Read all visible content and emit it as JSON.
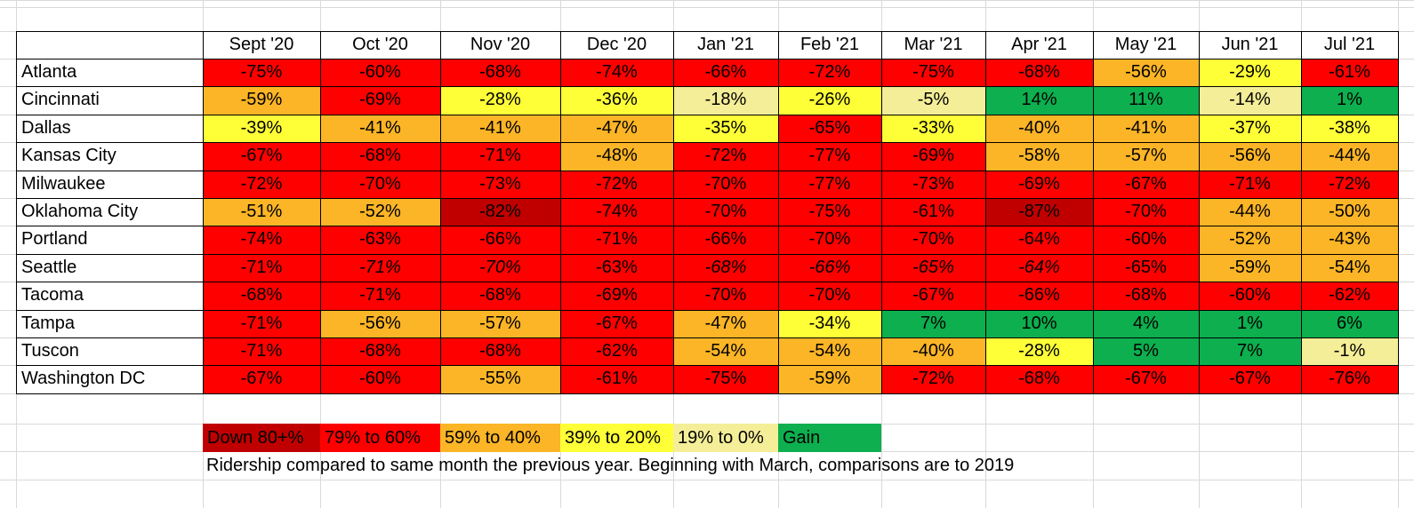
{
  "chart_data": {
    "type": "table",
    "columns": [
      "Sept '20",
      "Oct '20",
      "Nov '20",
      "Dec '20",
      "Jan '21",
      "Feb '21",
      "Mar '21",
      "Apr '21",
      "May '21",
      "Jun '21",
      "Jul '21"
    ],
    "rows": [
      {
        "city": "Atlanta",
        "values": [
          "-75%",
          "-60%",
          "-68%",
          "-74%",
          "-66%",
          "-72%",
          "-75%",
          "-68%",
          "-56%",
          "-29%",
          "-61%"
        ],
        "numeric": [
          -75,
          -60,
          -68,
          -74,
          -66,
          -72,
          -75,
          -68,
          -56,
          -29,
          -61
        ]
      },
      {
        "city": "Cincinnati",
        "values": [
          "-59%",
          "-69%",
          "-28%",
          "-36%",
          "-18%",
          "-26%",
          "-5%",
          "14%",
          "11%",
          "-14%",
          "1%"
        ],
        "numeric": [
          -59,
          -69,
          -28,
          -36,
          -18,
          -26,
          -5,
          14,
          11,
          -14,
          1
        ]
      },
      {
        "city": "Dallas",
        "values": [
          "-39%",
          "-41%",
          "-41%",
          "-47%",
          "-35%",
          "-65%",
          "-33%",
          "-40%",
          "-41%",
          "-37%",
          "-38%"
        ],
        "numeric": [
          -39,
          -41,
          -41,
          -47,
          -35,
          -65,
          -33,
          -40,
          -41,
          -37,
          -38
        ]
      },
      {
        "city": "Kansas City",
        "values": [
          "-67%",
          "-68%",
          "-71%",
          "-48%",
          "-72%",
          "-77%",
          "-69%",
          "-58%",
          "-57%",
          "-56%",
          "-44%"
        ],
        "numeric": [
          -67,
          -68,
          -71,
          -48,
          -72,
          -77,
          -69,
          -58,
          -57,
          -56,
          -44
        ]
      },
      {
        "city": "Milwaukee",
        "values": [
          "-72%",
          "-70%",
          "-73%",
          "-72%",
          "-70%",
          "-77%",
          "-73%",
          "-69%",
          "-67%",
          "-71%",
          "-72%"
        ],
        "numeric": [
          -72,
          -70,
          -73,
          -72,
          -70,
          -77,
          -73,
          -69,
          -67,
          -71,
          -72
        ]
      },
      {
        "city": "Oklahoma City",
        "values": [
          "-51%",
          "-52%",
          "-82%",
          "-74%",
          "-70%",
          "-75%",
          "-61%",
          "-87%",
          "-70%",
          "-44%",
          "-50%"
        ],
        "numeric": [
          -51,
          -52,
          -82,
          -74,
          -70,
          -75,
          -61,
          -87,
          -70,
          -44,
          -50
        ]
      },
      {
        "city": "Portland",
        "values": [
          "-74%",
          "-63%",
          "-66%",
          "-71%",
          "-66%",
          "-70%",
          "-70%",
          "-64%",
          "-60%",
          "-52%",
          "-43%"
        ],
        "numeric": [
          -74,
          -63,
          -66,
          -71,
          -66,
          -70,
          -70,
          -64,
          -60,
          -52,
          -43
        ]
      },
      {
        "city": "Seattle",
        "values": [
          "-71%",
          "-71%",
          "-70%",
          "-63%",
          "-68%",
          "-66%",
          "-65%",
          "-64%",
          "-65%",
          "-59%",
          "-54%"
        ],
        "numeric": [
          -71,
          -71,
          -70,
          -63,
          -68,
          -66,
          -65,
          -64,
          -65,
          -59,
          -54
        ],
        "italic": [
          false,
          true,
          true,
          false,
          true,
          true,
          true,
          true,
          false,
          false,
          false
        ]
      },
      {
        "city": "Tacoma",
        "values": [
          "-68%",
          "-71%",
          "-68%",
          "-69%",
          "-70%",
          "-70%",
          "-67%",
          "-66%",
          "-68%",
          "-60%",
          "-62%"
        ],
        "numeric": [
          -68,
          -71,
          -68,
          -69,
          -70,
          -70,
          -67,
          -66,
          -68,
          -60,
          -62
        ]
      },
      {
        "city": "Tampa",
        "values": [
          "-71%",
          "-56%",
          "-57%",
          "-67%",
          "-47%",
          "-34%",
          "7%",
          "10%",
          "4%",
          "1%",
          "6%"
        ],
        "numeric": [
          -71,
          -56,
          -57,
          -67,
          -47,
          -34,
          7,
          10,
          4,
          1,
          6
        ]
      },
      {
        "city": "Tuscon",
        "values": [
          "-71%",
          "-68%",
          "-68%",
          "-62%",
          "-54%",
          "-54%",
          "-40%",
          "-28%",
          "5%",
          "7%",
          "-1%"
        ],
        "numeric": [
          -71,
          -68,
          -68,
          -62,
          -54,
          -54,
          -40,
          -28,
          5,
          7,
          -1
        ]
      },
      {
        "city": "Washington DC",
        "values": [
          "-67%",
          "-60%",
          "-55%",
          "-61%",
          "-75%",
          "-59%",
          "-72%",
          "-68%",
          "-67%",
          "-67%",
          "-76%"
        ],
        "numeric": [
          -67,
          -60,
          -55,
          -61,
          -75,
          -59,
          -72,
          -68,
          -67,
          -67,
          -76
        ]
      }
    ],
    "legend": [
      {
        "label": "Down 80+%",
        "color": "#c00000"
      },
      {
        "label": "79% to 60%",
        "color": "#ff0000"
      },
      {
        "label": "59% to 40%",
        "color": "#fbb526"
      },
      {
        "label": "39% to 20%",
        "color": "#ffff38"
      },
      {
        "label": "19% to 0%",
        "color": "#f4ee98"
      },
      {
        "label": "Gain",
        "color": "#0daf4f"
      }
    ],
    "note": "Ridership compared to same month the previous year. Beginning with March, comparisons are to 2019"
  }
}
